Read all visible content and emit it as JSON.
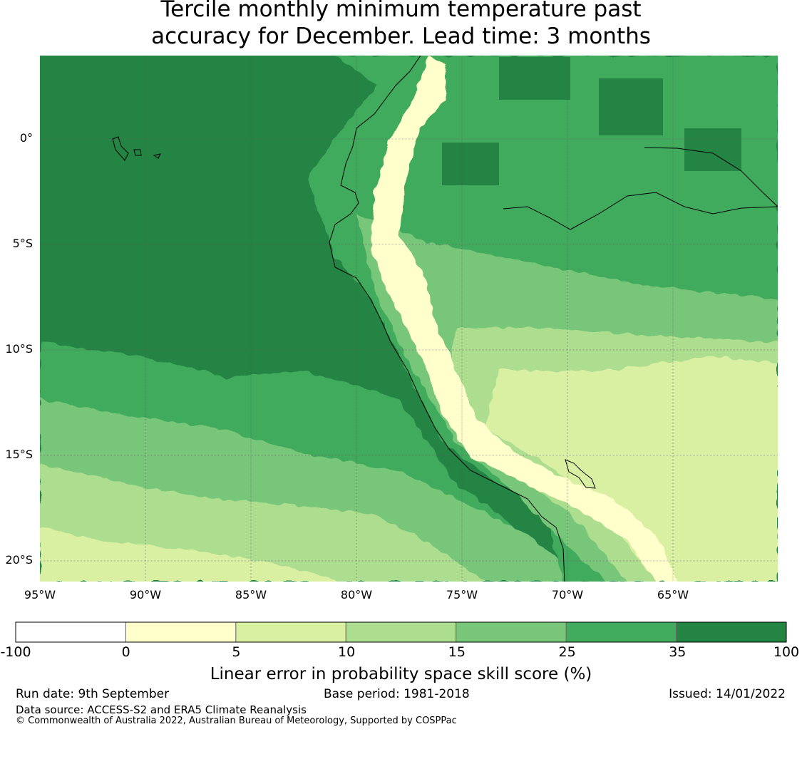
{
  "title": {
    "line1": "Tercile monthly minimum temperature past",
    "line2": "accuracy for December. Lead time: 3 months"
  },
  "map": {
    "lat_ticks": [
      "0°",
      "5°S",
      "10°S",
      "15°S",
      "20°S"
    ],
    "lon_ticks": [
      "95°W",
      "90°W",
      "85°W",
      "80°W",
      "75°W",
      "70°W",
      "65°W"
    ],
    "extent": {
      "lon_min": -95,
      "lon_max": -60,
      "lat_min": -21,
      "lat_max": 4
    }
  },
  "colorbar": {
    "label": "Linear error in probability space skill score (%)",
    "ticks": [
      "-100",
      "0",
      "5",
      "10",
      "15",
      "25",
      "35",
      "100"
    ],
    "colors": [
      "#ffffff",
      "#ffffcc",
      "#d9f0a3",
      "#addd8e",
      "#78c679",
      "#41ab5d",
      "#238443"
    ]
  },
  "footer": {
    "run_date": "Run date: 9th September",
    "base_period": "Base period: 1981-2018",
    "issued": "Issued: 14/01/2022",
    "data_source": "Data source: ACCESS-S2 and ERA5 Climate Reanalysis",
    "copyright": "© Commonwealth of Australia 2022, Australian Bureau of Meteorology, Supported by COSPPac"
  }
}
